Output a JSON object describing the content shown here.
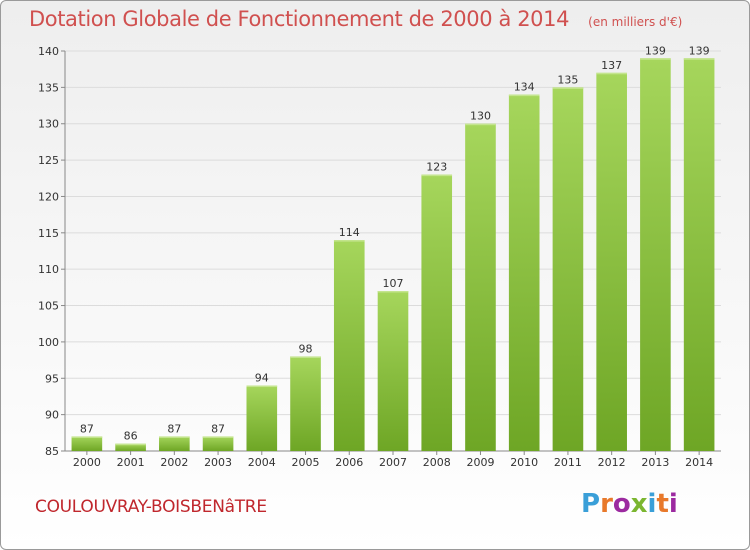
{
  "title": "Dotation Globale de Fonctionnement de 2000 à 2014",
  "unit": "(en milliers d'€)",
  "commune": "COULOUVRAY-BOISBENâTRE",
  "logo": {
    "text": "Proxiti",
    "letter_colors": [
      "#3a9fd8",
      "#e8792b",
      "#9c2aa0",
      "#7bb630",
      "#3a9fd8",
      "#e8792b",
      "#9c2aa0"
    ]
  },
  "colors": {
    "title": "#d0504f",
    "commune": "#c0272d",
    "bar_light": "#a6d65c",
    "bar_dark": "#6ea625",
    "grid": "#dcdcdc",
    "axis_text": "#333333"
  },
  "chart_data": {
    "type": "bar",
    "title": "Dotation Globale de Fonctionnement de 2000 à 2014",
    "subtitle": "(en milliers d'€)",
    "xlabel": "",
    "ylabel": "",
    "ylim": [
      85,
      140
    ],
    "yticks": [
      85,
      90,
      95,
      100,
      105,
      110,
      115,
      120,
      125,
      130,
      135,
      140
    ],
    "grid": true,
    "categories": [
      "2000",
      "2001",
      "2002",
      "2003",
      "2004",
      "2005",
      "2006",
      "2007",
      "2008",
      "2009",
      "2010",
      "2011",
      "2012",
      "2013",
      "2014"
    ],
    "values": [
      87,
      86,
      87,
      87,
      94,
      98,
      114,
      107,
      123,
      130,
      134,
      135,
      137,
      139,
      139
    ]
  }
}
